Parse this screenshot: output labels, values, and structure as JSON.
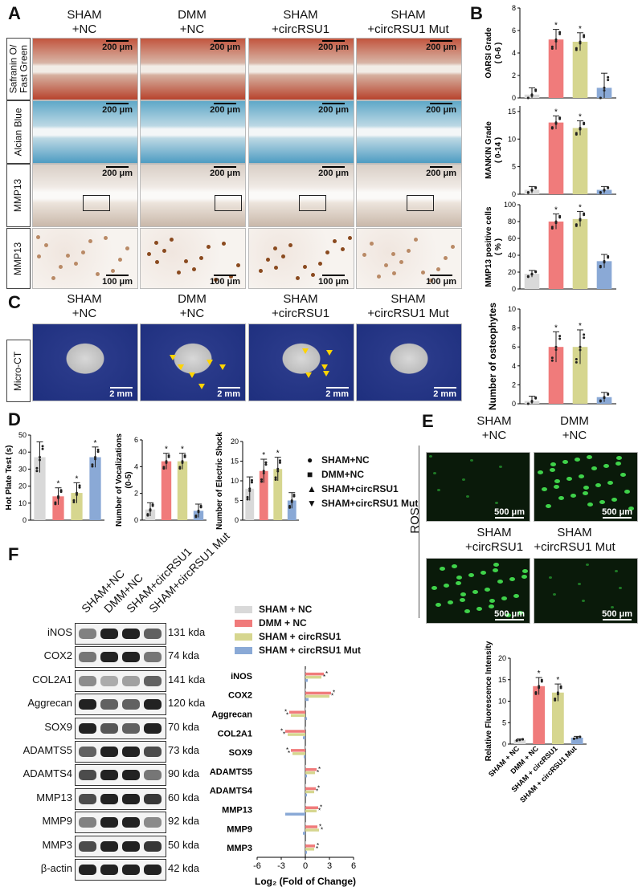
{
  "panelA": {
    "letter": "A",
    "columns": [
      "SHAM\n+NC",
      "DMM\n+NC",
      "SHAM\n+circRSU1",
      "SHAM\n+circRSU1 Mut"
    ],
    "rows": [
      "Safranin O/\nFast Green",
      "Alcian Blue",
      "MMP13",
      "MMP13"
    ],
    "scale_200": "200 μm",
    "scale_100": "100 μm"
  },
  "panelC": {
    "letter": "C",
    "columns": [
      "SHAM\n+NC",
      "DMM\n+NC",
      "SHAM\n+circRSU1",
      "SHAM\n+circRSU1 Mut"
    ],
    "row": "Micro-CT",
    "scale": "2 mm"
  },
  "panelB": {
    "letter": "B"
  },
  "panelD": {
    "letter": "D",
    "legend": [
      {
        "marker": "●",
        "label": "SHAM+NC"
      },
      {
        "marker": "■",
        "label": "DMM+NC"
      },
      {
        "marker": "▲",
        "label": "SHAM+circRSU1"
      },
      {
        "marker": "▼",
        "label": "SHAM+circRSU1 Mut"
      }
    ]
  },
  "panelE": {
    "letter": "E",
    "columns_top": [
      "SHAM\n+NC",
      "DMM\n+NC"
    ],
    "columns_bottom": [
      "SHAM\n+circRSU1",
      "SHAM\n+circRSU1 Mut"
    ],
    "row": "ROS",
    "scale": "500 μm"
  },
  "panelF": {
    "letter": "F",
    "lanes": [
      "SHAM+NC",
      "DMM+NC",
      "SHAM+circRSU1",
      "SHAM+circRSU1 Mut"
    ],
    "blots": [
      {
        "protein": "iNOS",
        "kda": "131 kda"
      },
      {
        "protein": "COX2",
        "kda": "74 kda"
      },
      {
        "protein": "COL2A1",
        "kda": "141 kda"
      },
      {
        "protein": "Aggrecan",
        "kda": "120 kda"
      },
      {
        "protein": "SOX9",
        "kda": "70 kda"
      },
      {
        "protein": "ADAMTS5",
        "kda": "73 kda"
      },
      {
        "protein": "ADAMTS4",
        "kda": "90 kda"
      },
      {
        "protein": "MMP13",
        "kda": "60 kda"
      },
      {
        "protein": "MMP9",
        "kda": "92 kda"
      },
      {
        "protein": "MMP3",
        "kda": "50 kda"
      },
      {
        "protein": "β-actin",
        "kda": "42 kda"
      }
    ],
    "legend": [
      {
        "label": "SHAM + NC",
        "color": "#d9d9d9"
      },
      {
        "label": "DMM + NC",
        "color": "#f07b7b"
      },
      {
        "label": "SHAM + circRSU1",
        "color": "#d6d68f"
      },
      {
        "label": "SHAM + circRSU1 Mut",
        "color": "#8aa9d6"
      }
    ]
  },
  "colors": {
    "sham_nc": "#d9d9d9",
    "dmm_nc": "#f07b7b",
    "sham_circ": "#d6d68f",
    "sham_mut": "#8aa9d6",
    "sham_nc_dark": "#777777"
  },
  "chart_data": [
    {
      "id": "oarsi",
      "type": "bar",
      "ylabel": "OARSI Grade\n( 0-6 )",
      "categories": [
        "SHAM+NC",
        "DMM+NC",
        "SHAM+circRSU1",
        "SHAM+circRSU1 Mut"
      ],
      "values": [
        0.3,
        5.2,
        5.0,
        0.9
      ],
      "errors": [
        0.6,
        0.9,
        0.8,
        1.3
      ],
      "ylim": [
        0,
        8
      ],
      "yticks": [
        0,
        2,
        4,
        6,
        8
      ],
      "significance": [
        "",
        "*",
        "*",
        ""
      ]
    },
    {
      "id": "mankin",
      "type": "bar",
      "ylabel": "MANKIN Grade\n( 0-14 )",
      "categories": [
        "SHAM+NC",
        "DMM+NC",
        "SHAM+circRSU1",
        "SHAM+circRSU1 Mut"
      ],
      "values": [
        0.8,
        13.0,
        12.0,
        0.8
      ],
      "errors": [
        0.6,
        1.2,
        1.3,
        0.6
      ],
      "ylim": [
        0,
        16
      ],
      "yticks": [
        0,
        5,
        10,
        15
      ],
      "significance": [
        "",
        "*",
        "*",
        ""
      ]
    },
    {
      "id": "mmp13pos",
      "type": "bar",
      "ylabel": "MMP13 positive cells\n( % )",
      "categories": [
        "SHAM+NC",
        "DMM+NC",
        "SHAM+circRSU1",
        "SHAM+circRSU1 Mut"
      ],
      "values": [
        18,
        80,
        83,
        33
      ],
      "errors": [
        4,
        9,
        9,
        8
      ],
      "ylim": [
        0,
        100
      ],
      "yticks": [
        0,
        20,
        40,
        60,
        80,
        100
      ],
      "significance": [
        "",
        "*",
        "*",
        ""
      ]
    },
    {
      "id": "osteophytes",
      "type": "bar",
      "ylabel": "Number of osteophytes",
      "categories": [
        "SHAM+NC",
        "DMM+NC",
        "SHAM+circRSU1",
        "SHAM+circRSU1 Mut"
      ],
      "values": [
        0.3,
        6.0,
        6.0,
        0.7
      ],
      "errors": [
        0.5,
        1.6,
        1.8,
        0.5
      ],
      "ylim": [
        0,
        10
      ],
      "yticks": [
        0,
        2,
        4,
        6,
        8,
        10
      ],
      "significance": [
        "",
        "*",
        "*",
        ""
      ]
    },
    {
      "id": "hotplate",
      "type": "bar",
      "ylabel": "Hot Plate Test (s)",
      "categories": [
        "SHAM+NC",
        "DMM+NC",
        "SHAM+circRSU1",
        "SHAM+circRSU1 Mut"
      ],
      "values": [
        37,
        14,
        16,
        37
      ],
      "errors": [
        9,
        5,
        6,
        6
      ],
      "ylim": [
        0,
        50
      ],
      "yticks": [
        0,
        10,
        20,
        30,
        40,
        50
      ],
      "significance": [
        "",
        "*",
        "*",
        "*"
      ]
    },
    {
      "id": "vocal",
      "type": "bar",
      "ylabel": "Number of Vocalizations\n(0-5)",
      "categories": [
        "SHAM+NC",
        "DMM+NC",
        "SHAM+circRSU1",
        "SHAM+circRSU1 Mut"
      ],
      "values": [
        0.8,
        4.4,
        4.4,
        0.7
      ],
      "errors": [
        0.5,
        0.6,
        0.6,
        0.5
      ],
      "ylim": [
        0,
        6
      ],
      "yticks": [
        0,
        2,
        4,
        6
      ],
      "significance": [
        "",
        "*",
        "*",
        ""
      ]
    },
    {
      "id": "shock",
      "type": "bar",
      "ylabel": "Number of Electric Shock",
      "categories": [
        "SHAM+NC",
        "DMM+NC",
        "SHAM+circRSU1",
        "SHAM+circRSU1 Mut"
      ],
      "values": [
        8,
        12.5,
        13,
        5
      ],
      "errors": [
        3,
        3,
        3,
        2
      ],
      "ylim": [
        0,
        20
      ],
      "yticks": [
        0,
        5,
        10,
        15,
        20
      ],
      "significance": [
        "",
        "*",
        "*",
        ""
      ]
    },
    {
      "id": "fluor",
      "type": "bar",
      "ylabel": "Relative Fluorescence Intensity",
      "categories": [
        "SHAM + NC",
        "DMM + NC",
        "SHAM + circRSU1",
        "SHAM + circRSU1 Mut"
      ],
      "values": [
        1.0,
        13.5,
        12.0,
        1.5
      ],
      "errors": [
        0.2,
        2.0,
        2.0,
        0.3
      ],
      "ylim": [
        0,
        20
      ],
      "yticks": [
        0,
        5,
        10,
        15,
        20
      ],
      "significance": [
        "",
        "*",
        "*",
        ""
      ]
    },
    {
      "id": "foldchange",
      "type": "bar",
      "orientation": "horizontal",
      "xlabel": "Log₂ (Fold of Change)",
      "xlim": [
        -6,
        6
      ],
      "xticks": [
        -6,
        -3,
        0,
        3,
        6
      ],
      "categories": [
        "iNOS",
        "COX2",
        "Aggrecan",
        "COL2A1",
        "SOX9",
        "ADAMTS5",
        "ADAMTS4",
        "MMP13",
        "MMP9",
        "MMP3"
      ],
      "series": [
        {
          "name": "SHAM + NC",
          "values": [
            0,
            0,
            0,
            0,
            0,
            0,
            0,
            0,
            0,
            0
          ]
        },
        {
          "name": "DMM + NC",
          "values": [
            2.3,
            3.2,
            -2.0,
            -2.5,
            -1.8,
            1.4,
            1.3,
            1.6,
            1.5,
            1.2
          ]
        },
        {
          "name": "SHAM + circRSU1",
          "values": [
            2.0,
            3.0,
            -1.8,
            -2.2,
            -1.6,
            1.2,
            1.1,
            1.4,
            1.7,
            1.1
          ]
        },
        {
          "name": "SHAM + circRSU1 Mut",
          "values": [
            0.3,
            0.4,
            0.2,
            -0.3,
            -0.2,
            0.2,
            0.2,
            -2.5,
            -0.3,
            0.2
          ]
        }
      ]
    }
  ]
}
